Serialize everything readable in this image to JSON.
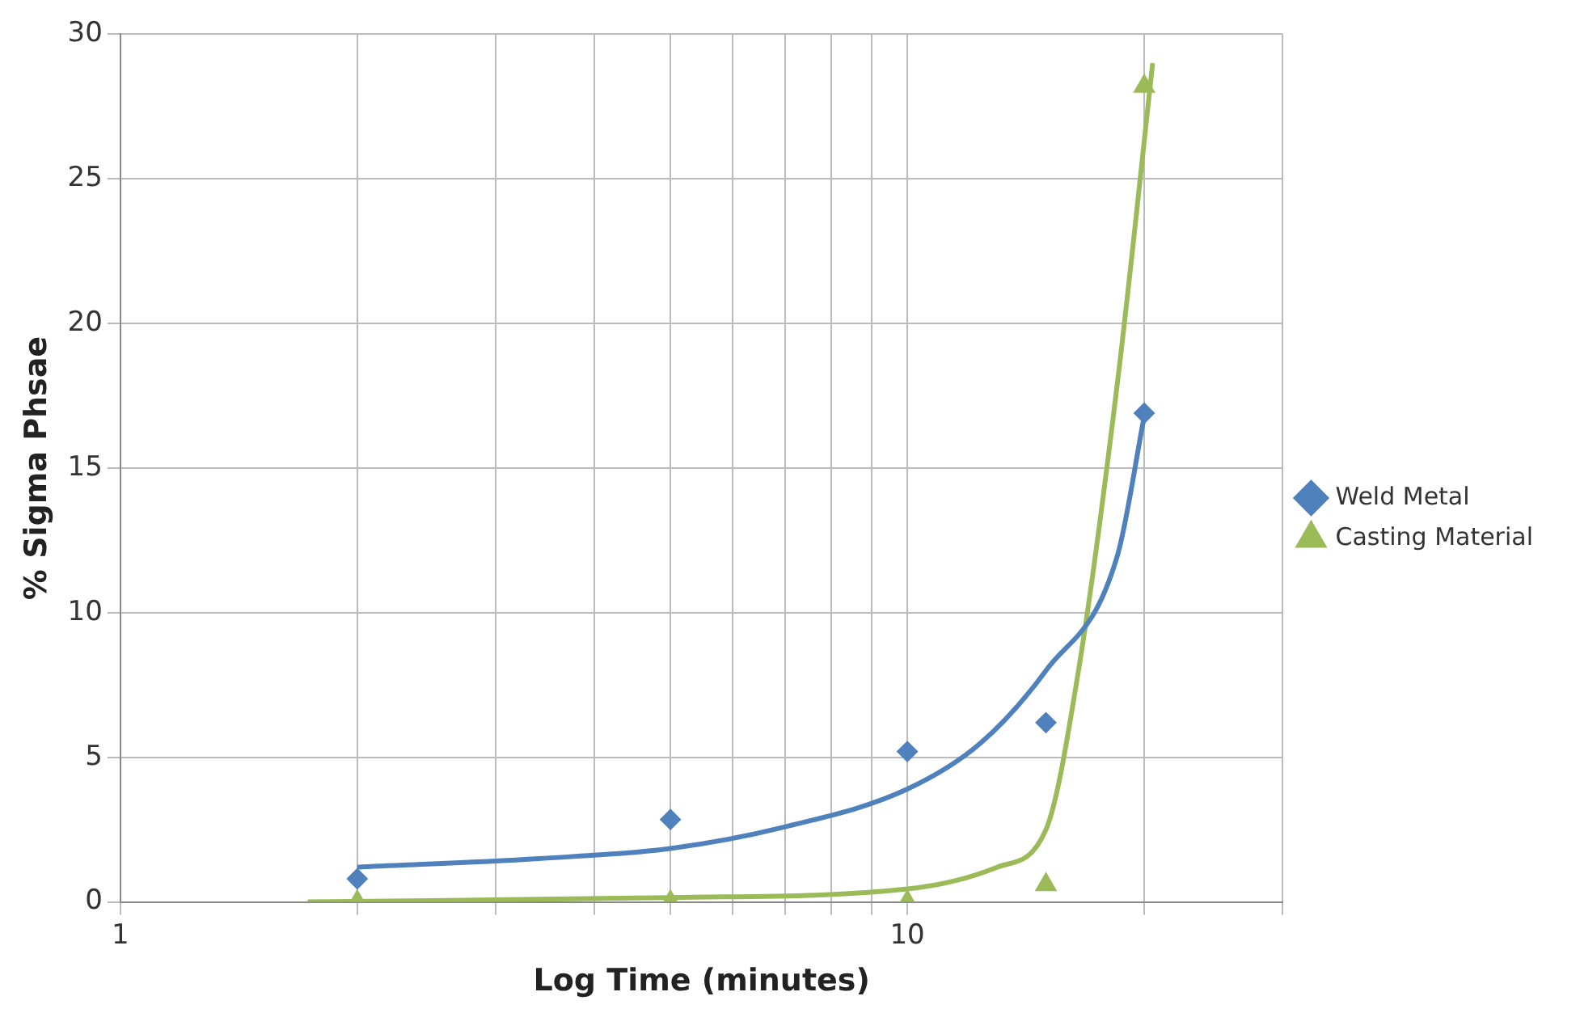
{
  "chart_data": {
    "type": "scatter",
    "xlabel": "Log Time (minutes)",
    "ylabel": "% Sigma Phsae",
    "log": "x",
    "grid": true,
    "legend": "right",
    "xlim": [
      1,
      30
    ],
    "xticks": [
      {
        "value": 1,
        "label": "1"
      },
      {
        "value": 2,
        "label": null
      },
      {
        "value": 3,
        "label": null
      },
      {
        "value": 4,
        "label": null
      },
      {
        "value": 5,
        "label": null
      },
      {
        "value": 6,
        "label": null
      },
      {
        "value": 7,
        "label": null
      },
      {
        "value": 8,
        "label": null
      },
      {
        "value": 9,
        "label": null
      },
      {
        "value": 10,
        "label": "10"
      },
      {
        "value": 20,
        "label": null
      },
      {
        "value": 30,
        "label": null
      }
    ],
    "ylim": [
      0,
      30
    ],
    "yticks": [
      0,
      5,
      10,
      15,
      20,
      25,
      30
    ],
    "series": [
      {
        "type": "line",
        "marker": "none",
        "color": "#4f81bd",
        "x": [
          2,
          3.4,
          5,
          7,
          10,
          12.4,
          15,
          18.5,
          20
        ],
        "values": [
          1.2,
          1.5,
          1.85,
          2.6,
          3.9,
          5.5,
          8,
          12,
          16.8
        ]
      },
      {
        "type": "line",
        "marker": "none",
        "color": "#9bbb59",
        "x": [
          1.73,
          5,
          10,
          13,
          15,
          16.5,
          18.5,
          20.5
        ],
        "values": [
          0,
          0.15,
          0.45,
          1.2,
          2.5,
          8,
          18,
          29
        ]
      },
      {
        "name": "Weld Metal",
        "marker": "diamond",
        "color": "#4f81bd",
        "x": [
          2,
          5,
          10,
          15,
          20
        ],
        "values": [
          0.8,
          2.85,
          5.2,
          6.2,
          16.9
        ]
      },
      {
        "name": "Casting Material",
        "marker": "triangle",
        "color": "#9bbb59",
        "x": [
          2,
          5,
          10,
          15,
          20
        ],
        "values": [
          0,
          0,
          0,
          0.6,
          28.2
        ]
      }
    ]
  }
}
